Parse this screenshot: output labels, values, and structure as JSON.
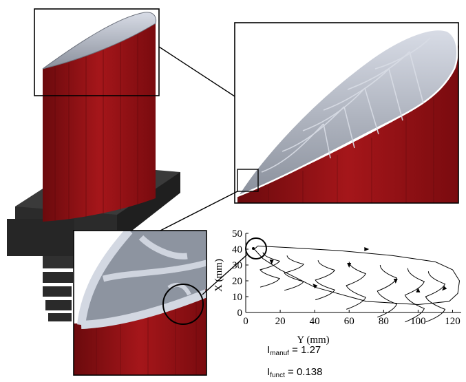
{
  "plot": {
    "xlabel": "Y (mm)",
    "ylabel": "X (mm)",
    "x_ticks": [
      "0",
      "20",
      "40",
      "60",
      "80",
      "100",
      "120"
    ],
    "y_ticks": [
      "0",
      "10",
      "20",
      "30",
      "40",
      "50"
    ],
    "xlim": [
      0,
      125
    ],
    "ylim": [
      0,
      50
    ]
  },
  "indices": {
    "manuf": {
      "prefix": "I",
      "sub": "manuf",
      "value": "= 1.27"
    },
    "funct": {
      "prefix": "I",
      "sub": "funct",
      "value": "= 0.138"
    }
  },
  "colors": {
    "blade_red": "#8e0e12",
    "lattice_grey": "#a8aebb",
    "base_dark": "#2d2d2d",
    "frame": "#000000"
  },
  "chart_data": {
    "type": "line",
    "title": "",
    "xlabel": "Y (mm)",
    "ylabel": "X (mm)",
    "xlim": [
      0,
      125
    ],
    "ylim": [
      0,
      50
    ],
    "series": [
      {
        "values": [
          [
            7,
            42
          ],
          [
            25,
            41
          ],
          [
            55,
            39
          ],
          [
            85,
            36
          ],
          [
            110,
            32
          ],
          [
            120,
            27
          ],
          [
            124,
            20
          ],
          [
            123,
            12
          ],
          [
            118,
            7
          ],
          [
            100,
            5
          ],
          [
            70,
            7
          ],
          [
            40,
            16
          ],
          [
            20,
            27
          ],
          [
            10,
            34
          ],
          [
            5,
            40
          ],
          [
            7,
            42
          ]
        ]
      }
    ]
  }
}
